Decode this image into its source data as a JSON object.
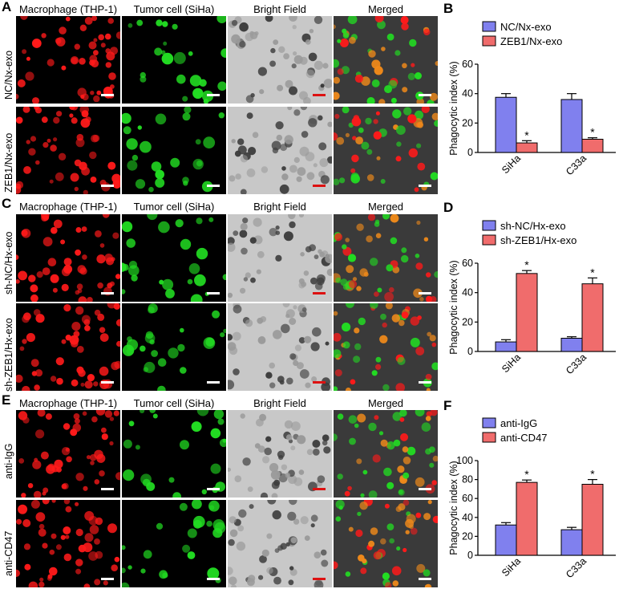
{
  "figure": {
    "columns": [
      "Macrophage (THP-1)",
      "Tumor cell (SiHa)",
      "Bright Field",
      "Merged"
    ],
    "panels": [
      {
        "letter": "A",
        "rows": [
          "NC/Nx-exo",
          "ZEB1/Nx-exo"
        ]
      },
      {
        "letter": "C",
        "rows": [
          "sh-NC/Hx-exo",
          "sh-ZEB1/Hx-exo"
        ]
      },
      {
        "letter": "E",
        "rows": [
          "anti-IgG",
          "anti-CD47"
        ]
      }
    ]
  },
  "colors": {
    "series1": "#8080ee",
    "series2": "#f06c6c",
    "macrophage": "#ff1a1a",
    "tumor": "#22dd22",
    "merged_overlap": "#f08a1a"
  },
  "chart_data": [
    {
      "letter": "B",
      "type": "bar",
      "ylabel": "Phagocytic index (%)",
      "categories": [
        "SiHa",
        "C33a"
      ],
      "ylim": [
        0,
        60
      ],
      "yticks": [
        "0",
        "20",
        "40",
        "60"
      ],
      "legend_position": "top-left",
      "series": [
        {
          "name": "NC/Nx-exo",
          "values": [
            37.5,
            36
          ],
          "errors": [
            2.5,
            4
          ],
          "stars": [
            "",
            ""
          ]
        },
        {
          "name": "ZEB1/Nx-exo",
          "values": [
            6.5,
            9
          ],
          "errors": [
            1.5,
            1
          ],
          "stars": [
            "*",
            "*"
          ]
        }
      ]
    },
    {
      "letter": "D",
      "type": "bar",
      "ylabel": "Phagocytic index (%)",
      "categories": [
        "SiHa",
        "C33a"
      ],
      "ylim": [
        0,
        60
      ],
      "yticks": [
        "0",
        "20",
        "40",
        "60"
      ],
      "legend_position": "top-left",
      "series": [
        {
          "name": "sh-NC/Hx-exo",
          "values": [
            6.5,
            9
          ],
          "errors": [
            1.5,
            1
          ],
          "stars": [
            "",
            ""
          ]
        },
        {
          "name": "sh-ZEB1/Hx-exo",
          "values": [
            53,
            46
          ],
          "errors": [
            2,
            4
          ],
          "stars": [
            "*",
            "*"
          ]
        }
      ]
    },
    {
      "letter": "F",
      "type": "bar",
      "ylabel": "Phagocytic index (%)",
      "categories": [
        "SiHa",
        "C33a"
      ],
      "ylim": [
        0,
        100
      ],
      "yticks": [
        "0",
        "20",
        "40",
        "60",
        "80",
        "100"
      ],
      "legend_position": "top-left",
      "series": [
        {
          "name": "anti-IgG",
          "values": [
            32,
            27
          ],
          "errors": [
            2.5,
            2.5
          ],
          "stars": [
            "",
            ""
          ]
        },
        {
          "name": "anti-CD47",
          "values": [
            77,
            75
          ],
          "errors": [
            2.5,
            5
          ],
          "stars": [
            "*",
            "*"
          ]
        }
      ]
    }
  ]
}
